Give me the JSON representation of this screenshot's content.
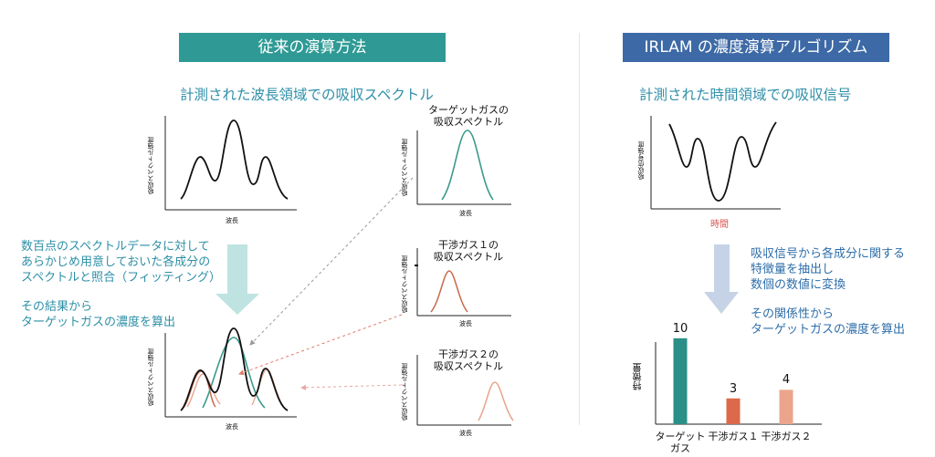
{
  "left": {
    "banner": "従来の演算方法",
    "subtitle": "計測された波長領域での吸収スペクトル",
    "note_lines": [
      "数百点のスペクトルデータに対して",
      "あらかじめ用意しておいた各成分の",
      "スペクトルと照合（フィッティング）"
    ],
    "result_lines": [
      "その結果から",
      "ターゲットガスの濃度を算出"
    ],
    "axis_y": "吸収スペクトル強度",
    "axis_x": "波長",
    "small_charts": [
      {
        "title_lines": [
          "ターゲットガスの",
          "吸収スペクトル"
        ],
        "color": "#3a9a8c"
      },
      {
        "title_lines": [
          "干渉ガス１の",
          "吸収スペクトル"
        ],
        "color": "#c9694a"
      },
      {
        "title_lines": [
          "干渉ガス２の",
          "吸収スペクトル"
        ],
        "color": "#e8a48c"
      }
    ]
  },
  "right": {
    "banner": "IRLAM の濃度演算アルゴリズム",
    "subtitle": "計測された時間領域での吸収信号",
    "axis_y": "吸収信号強度",
    "axis_x": "時間",
    "note_lines": [
      "吸収信号から各成分に関する",
      "特徴量を抽出し",
      "数個の数値に変換"
    ],
    "result_lines": [
      "その関係性から",
      "ターゲットガスの濃度を算出"
    ]
  },
  "chart_data": {
    "type": "bar",
    "ylabel": "特徴量",
    "categories": [
      "ターゲットガス",
      "干渉ガス１",
      "干渉ガス２"
    ],
    "category_lines": [
      [
        "ターゲット",
        "ガス"
      ],
      [
        "干渉ガス１"
      ],
      [
        "干渉ガス２"
      ]
    ],
    "values": [
      10,
      3,
      4
    ],
    "colors": [
      "#2a8f86",
      "#dc6a4a",
      "#eba58c"
    ],
    "ylim": [
      0,
      12
    ]
  },
  "colors": {
    "teal_banner": "#2f9a95",
    "blue_banner": "#3d6aa6",
    "arrow_teal": "#bfe3e0",
    "arrow_blue": "#c6d3e6"
  }
}
